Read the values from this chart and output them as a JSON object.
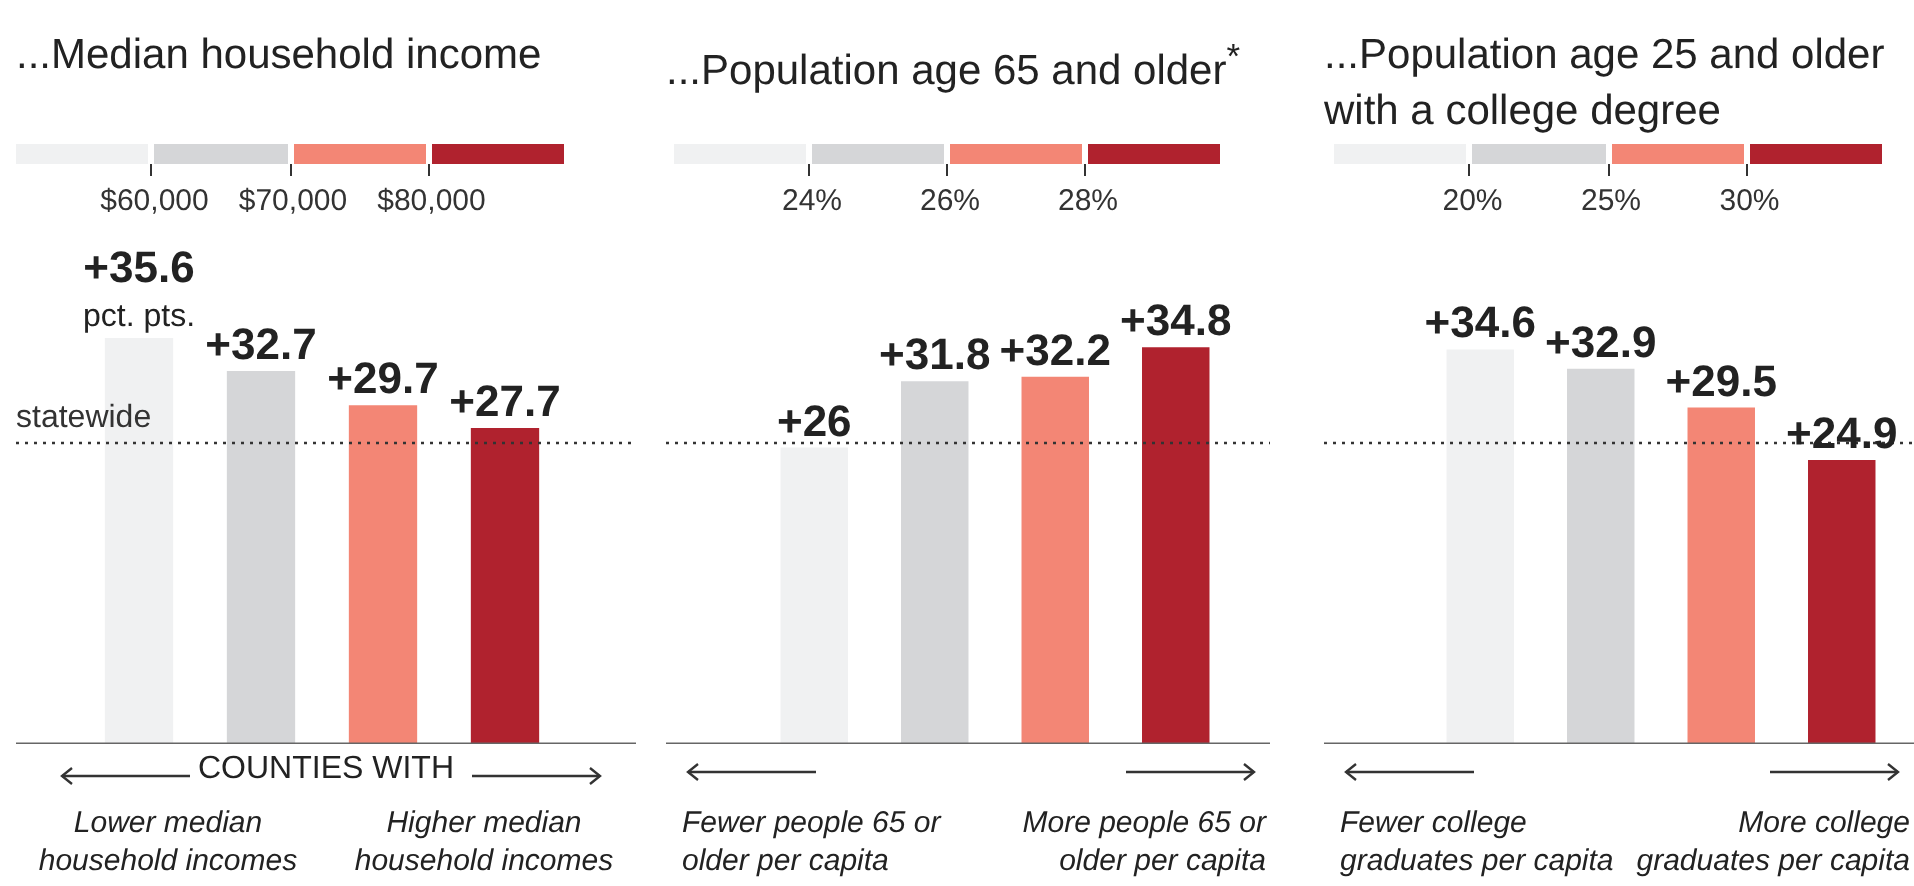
{
  "chart_data": [
    {
      "type": "bar",
      "title": "...Median household income",
      "xlabel": "COUNTIES WITH",
      "categories": [
        null,
        null,
        null,
        null
      ],
      "values": [
        35.6,
        32.7,
        29.7,
        27.7
      ],
      "colors": [
        "#f0f1f2",
        "#d5d6d8",
        "#f38675",
        "#b0222e"
      ],
      "value_labels": [
        "+35.6\npct. pts.",
        "+32.7",
        "+29.7",
        "+27.7"
      ],
      "ref_lines": [
        {
          "axis": "y",
          "value": 26.4,
          "label": "statewide",
          "line_style": "dotted"
        }
      ],
      "annotations": [
        "$60,000",
        "$70,000",
        "$80,000",
        "Lower median household incomes",
        "Higher median household incomes"
      ],
      "tick_labels": false
    },
    {
      "type": "bar",
      "title": "...Population age 65 and older$^{*}$",
      "categories": [
        null,
        null,
        null,
        null
      ],
      "values": [
        26,
        31.8,
        32.2,
        34.8
      ],
      "colors": [
        "#f0f1f2",
        "#d5d6d8",
        "#f38675",
        "#b0222e"
      ],
      "value_labels": [
        "+26",
        "+31.8",
        "+32.2",
        "+34.8"
      ],
      "ref_lines": [
        {
          "axis": "y",
          "value": 26.4,
          "line_style": "dotted"
        }
      ],
      "annotations": [
        "24%",
        "26%",
        "28%",
        "Fewer people 65 or older per capita",
        "More people 65 or older per capita"
      ],
      "tick_labels": false
    },
    {
      "type": "bar",
      "title": "...Population age 25 and older with a college degree",
      "categories": [
        null,
        null,
        null,
        null
      ],
      "values": [
        34.6,
        32.9,
        29.5,
        24.9
      ],
      "colors": [
        "#f0f1f2",
        "#d5d6d8",
        "#f38675",
        "#b0222e"
      ],
      "value_labels": [
        "+34.6",
        "+32.9",
        "+29.5",
        "+24.9"
      ],
      "ref_lines": [
        {
          "axis": "y",
          "value": 26.4,
          "line_style": "dotted"
        }
      ],
      "annotations": [
        "20%",
        "25%",
        "30%",
        "Fewer college graduates per capita",
        "More college graduates per capita"
      ],
      "tick_labels": false
    }
  ]
}
